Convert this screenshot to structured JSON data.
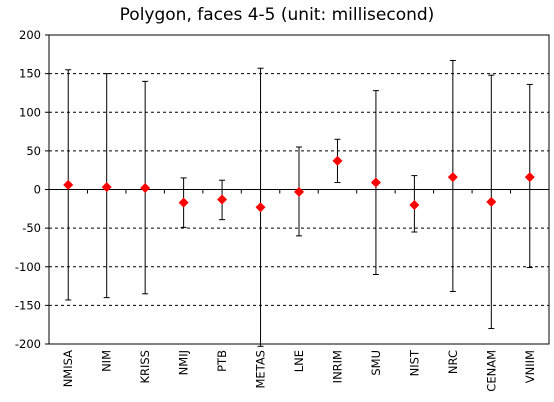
{
  "chart_data": {
    "type": "scatter",
    "title": "Polygon, faces 4-5 (unit: millisecond)",
    "xlabel": "",
    "ylabel": "",
    "ylim": [
      -200,
      200
    ],
    "yticks": [
      200,
      150,
      100,
      50,
      0,
      -50,
      -100,
      -150,
      -200
    ],
    "ytick_labels": [
      "200",
      "150",
      "100",
      "50",
      "0",
      "-50",
      "-100",
      "-150",
      "-200"
    ],
    "grid": "horizontal dashed",
    "categories": [
      "NMISA",
      "NIM",
      "KRISS",
      "NMIJ",
      "PTB",
      "METAS",
      "LNE",
      "INRIM",
      "SMU",
      "NIST",
      "NRC",
      "CENAM",
      "VNIIM"
    ],
    "values": [
      6,
      3,
      2,
      -17,
      -13,
      -23,
      -3,
      37,
      9,
      -20,
      16,
      -16,
      16
    ],
    "error_upper": [
      155,
      150,
      140,
      15,
      12,
      157,
      55,
      65,
      128,
      18,
      167,
      148,
      136
    ],
    "error_lower": [
      -143,
      -140,
      -135,
      -49,
      -39,
      -203,
      -60,
      9,
      -110,
      -55,
      -132,
      -180,
      -101
    ],
    "marker_color": "#ff0000",
    "error_bar_color": "#000000",
    "grid_color": "#000000"
  }
}
